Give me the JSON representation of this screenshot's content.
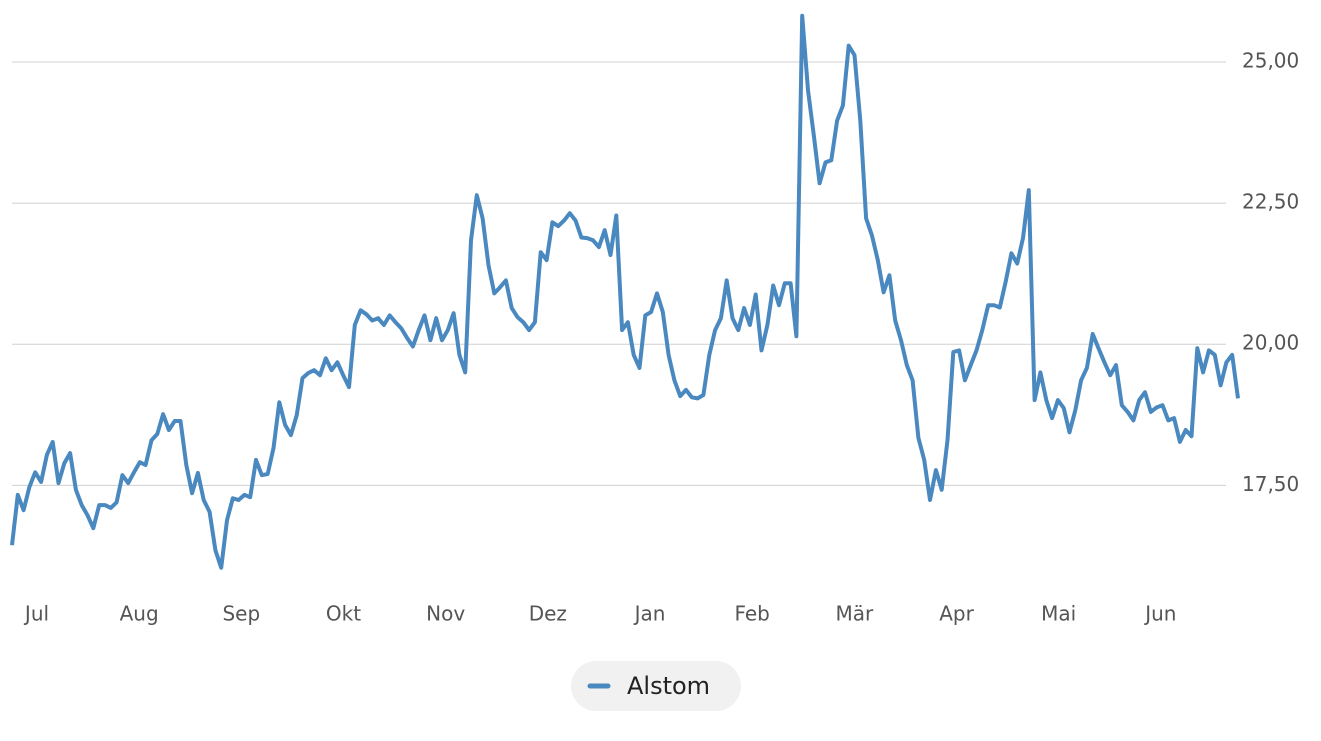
{
  "chart_data": {
    "type": "line",
    "xticks": [
      "Jul",
      "Aug",
      "Sep",
      "Okt",
      "Nov",
      "Dez",
      "Jan",
      "Feb",
      "Mär",
      "Apr",
      "Mai",
      "Jun"
    ],
    "series": [
      {
        "name": "Alstom",
        "color": "#4a88c0",
        "values": [
          16.44,
          17.33,
          17.06,
          17.47,
          17.73,
          17.56,
          18.04,
          18.27,
          17.54,
          17.89,
          18.07,
          17.42,
          17.15,
          16.97,
          16.74,
          17.15,
          17.15,
          17.1,
          17.2,
          17.68,
          17.54,
          17.73,
          17.91,
          17.86,
          18.3,
          18.41,
          18.76,
          18.48,
          18.64,
          18.64,
          17.86,
          17.36,
          17.72,
          17.24,
          17.03,
          16.35,
          16.04,
          16.88,
          17.27,
          17.24,
          17.33,
          17.29,
          17.95,
          17.68,
          17.7,
          18.16,
          18.97,
          18.57,
          18.39,
          18.74,
          19.4,
          19.49,
          19.54,
          19.45,
          19.75,
          19.54,
          19.68,
          19.45,
          19.24,
          20.34,
          20.6,
          20.53,
          20.42,
          20.46,
          20.34,
          20.51,
          20.39,
          20.28,
          20.11,
          19.96,
          20.25,
          20.51,
          20.07,
          20.46,
          20.07,
          20.25,
          20.55,
          19.81,
          19.5,
          21.84,
          22.64,
          22.23,
          21.4,
          20.9,
          21.01,
          21.13,
          20.64,
          20.48,
          20.39,
          20.25,
          20.39,
          21.63,
          21.49,
          22.16,
          22.09,
          22.19,
          22.32,
          22.19,
          21.89,
          21.88,
          21.84,
          21.72,
          22.02,
          21.58,
          22.28,
          20.25,
          20.39,
          19.81,
          19.58,
          20.51,
          20.57,
          20.9,
          20.57,
          19.81,
          19.36,
          19.08,
          19.19,
          19.06,
          19.04,
          19.1,
          19.81,
          20.25,
          20.46,
          21.13,
          20.46,
          20.25,
          20.64,
          20.34,
          20.88,
          19.89,
          20.34,
          21.04,
          20.69,
          21.08,
          21.08,
          20.14,
          25.82,
          24.5,
          23.7,
          22.85,
          23.22,
          23.26,
          23.96,
          24.23,
          25.29,
          25.12,
          23.96,
          22.23,
          21.93,
          21.49,
          20.92,
          21.22,
          20.42,
          20.07,
          19.63,
          19.36,
          18.34,
          17.95,
          17.24,
          17.77,
          17.42,
          18.3,
          19.86,
          19.89,
          19.36,
          19.63,
          19.89,
          20.25,
          20.69,
          20.69,
          20.65,
          21.1,
          21.61,
          21.43,
          21.88,
          22.73,
          19.01,
          19.5,
          19.01,
          18.69,
          19.01,
          18.87,
          18.44,
          18.83,
          19.36,
          19.58,
          20.18,
          19.93,
          19.68,
          19.45,
          19.63,
          18.92,
          18.8,
          18.65,
          19.01,
          19.15,
          18.8,
          18.88,
          18.92,
          18.65,
          18.69,
          18.27,
          18.48,
          18.37,
          19.93,
          19.5,
          19.89,
          19.81,
          19.27,
          19.68,
          19.81,
          19.04
        ]
      }
    ],
    "ylim": [
      16,
      26
    ],
    "yticks": [
      {
        "value": 17.5,
        "label": "17,50"
      },
      {
        "value": 20,
        "label": "20,00"
      },
      {
        "value": 22.5,
        "label": "22,50"
      },
      {
        "value": 25,
        "label": "25,00"
      }
    ],
    "grid": true
  }
}
